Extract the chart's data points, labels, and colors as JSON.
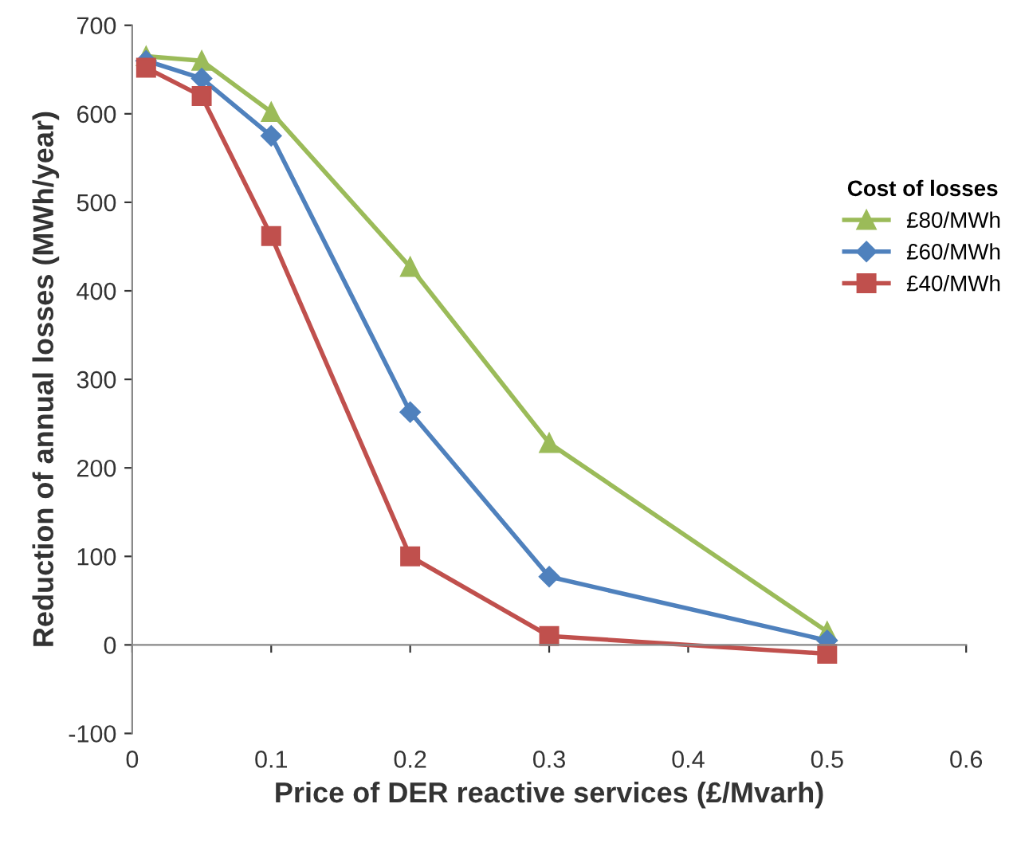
{
  "chart_data": {
    "type": "line",
    "xlabel": "Price of DER reactive services (£/Mvarh)",
    "ylabel": "Reduction of annual losses (MWh/year)",
    "legend_title": "Cost of losses",
    "legend": "right",
    "x": [
      0.01,
      0.05,
      0.1,
      0.2,
      0.3,
      0.5
    ],
    "series": [
      {
        "name": "£80/MWh",
        "color": "#9bbb59",
        "marker": "triangle",
        "values": [
          665,
          660,
          602,
          427,
          228,
          15
        ]
      },
      {
        "name": "£60/MWh",
        "color": "#4f81bd",
        "marker": "diamond",
        "values": [
          660,
          640,
          575,
          263,
          77,
          5
        ]
      },
      {
        "name": "£40/MWh",
        "color": "#c0504d",
        "marker": "square",
        "values": [
          652,
          620,
          462,
          100,
          10,
          -10
        ]
      }
    ],
    "xlim": [
      0,
      0.6
    ],
    "xticks": [
      {
        "value": 0,
        "label": "0"
      },
      0.1,
      0.2,
      0.3,
      0.4,
      0.5,
      0.6
    ],
    "ylim": [
      -100,
      700
    ],
    "yticks": [
      -100,
      0,
      100,
      200,
      300,
      400,
      500,
      600,
      700
    ]
  }
}
